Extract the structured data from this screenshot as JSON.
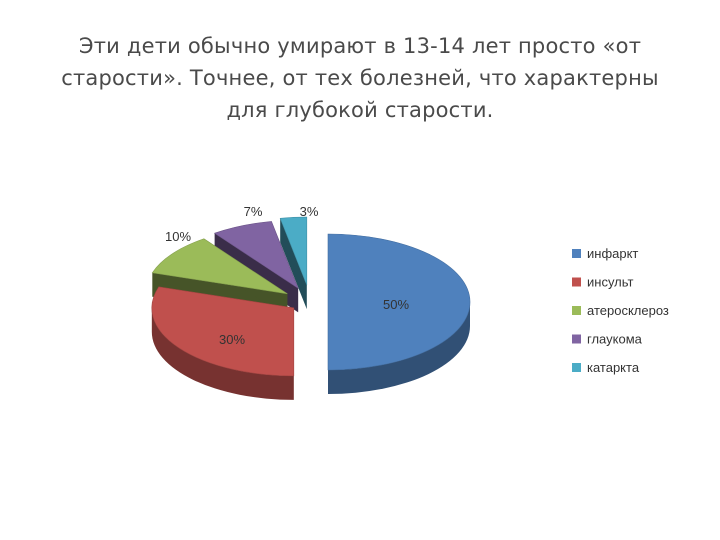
{
  "slide": {
    "title_lines": [
      "Эти дети обычно умирают в 13-14 лет просто «от",
      "старости». Точнее, от тех болезней, что характерны",
      "для глубокой старости."
    ]
  },
  "chart_data": {
    "type": "pie",
    "title": "",
    "categories": [
      "инфаркт",
      "инсульт",
      "атеросклероз",
      "глаукома",
      "катаркта"
    ],
    "values": [
      50,
      30,
      10,
      7,
      3
    ],
    "labels": [
      "50%",
      "30%",
      "10%",
      "7%",
      "3%"
    ],
    "colors": [
      "#4F81BD",
      "#C0504D",
      "#9BBB59",
      "#8064A2",
      "#4BACC6"
    ],
    "exploded": true,
    "three_d": true,
    "legend_position": "right"
  }
}
